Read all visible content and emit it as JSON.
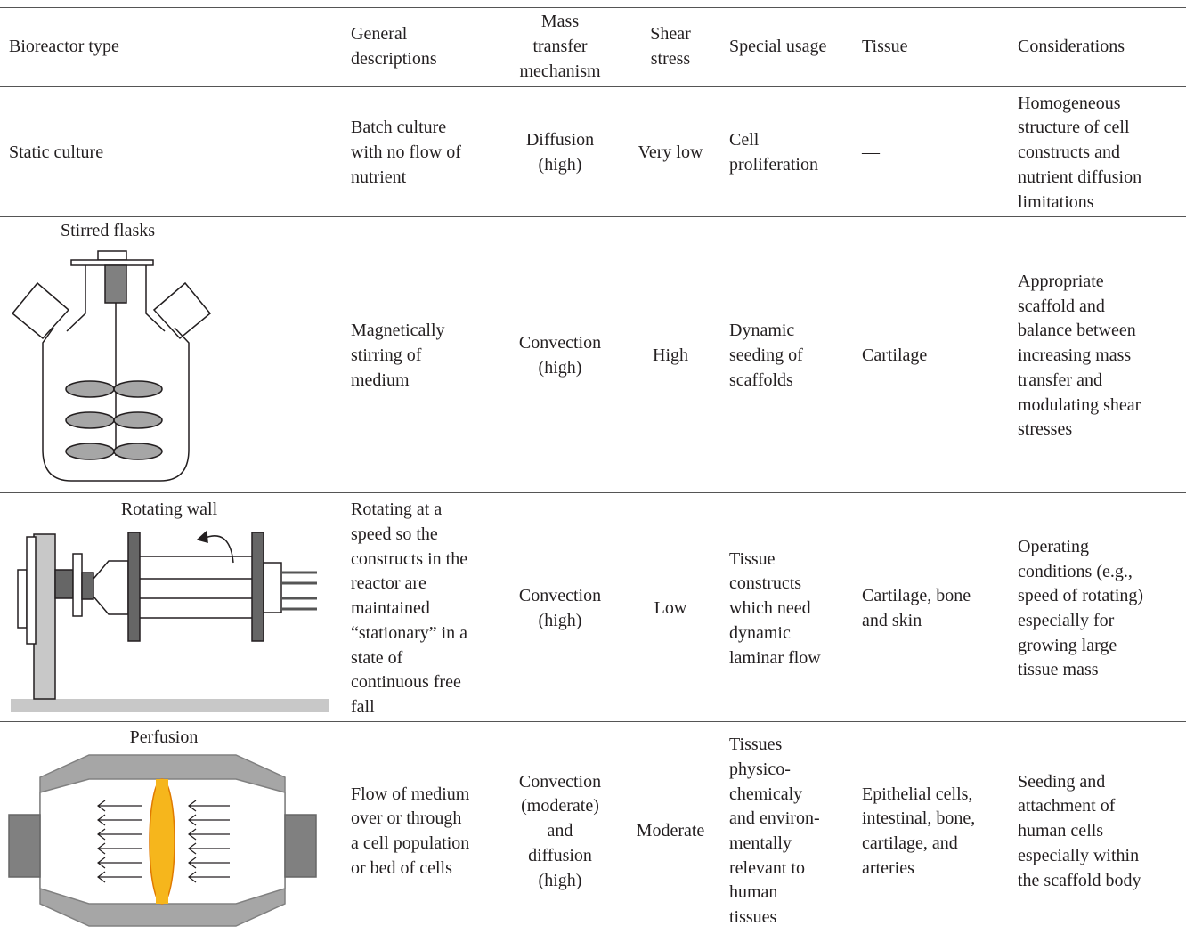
{
  "table": {
    "header": [
      [
        "Bioreactor type"
      ],
      [
        "General",
        "descriptions"
      ],
      [
        "Mass",
        "transfer",
        "mechanism"
      ],
      [
        "Shear",
        "stress"
      ],
      [
        "Special usage"
      ],
      [
        "Tissue"
      ],
      [
        "Considerations"
      ]
    ],
    "rows": [
      [
        [
          "Static culture"
        ],
        [
          "Batch culture",
          "with no flow of",
          "nutrient"
        ],
        [
          "Diffusion",
          "(high)"
        ],
        [
          "Very low"
        ],
        [
          "Cell",
          "proliferation"
        ],
        [
          "—"
        ],
        [
          "Homogeneous",
          "structure of cell",
          "constructs and",
          "nutrient diffusion",
          "limitations"
        ]
      ],
      [
        [
          "Stirred flasks"
        ],
        [
          "Magnetically",
          "stirring of",
          "medium"
        ],
        [
          "Convection",
          "(high)"
        ],
        [
          "High"
        ],
        [
          "Dynamic",
          "seeding of",
          "scaffolds"
        ],
        [
          "Cartilage"
        ],
        [
          "Appropriate",
          "scaffold and",
          "balance between",
          "increasing mass",
          "transfer and",
          "modulating shear",
          "stresses"
        ]
      ],
      [
        [
          "Rotating wall"
        ],
        [
          "Rotating at a",
          "speed so the",
          "constructs in the",
          "reactor are",
          "maintained",
          "“stationary” in a",
          "state of",
          "continuous free",
          "fall"
        ],
        [
          "Convection",
          "(high)"
        ],
        [
          "Low"
        ],
        [
          "Tissue",
          "constructs",
          "which need",
          "dynamic",
          "laminar flow"
        ],
        [
          "Cartilage, bone",
          "and skin"
        ],
        [
          "Operating",
          "conditions (e.g.,",
          "speed of rotating)",
          "especially for",
          "growing large",
          "tissue mass"
        ]
      ],
      [
        [
          "Perfusion"
        ],
        [
          "Flow of medium",
          "over or through",
          "a cell population",
          "or bed of cells"
        ],
        [
          "Convection",
          "(moderate)",
          "and",
          "diffusion",
          "(high)"
        ],
        [
          "Moderate"
        ],
        [
          "Tissues",
          "physico-",
          "chemicaly",
          "and environ-",
          "mentally",
          "relevant to",
          "human",
          "tissues"
        ],
        [
          "Epithelial cells,",
          "intestinal, bone,",
          "cartilage, and",
          "arteries"
        ],
        [
          "Seeding and",
          "attachment of",
          "human cells",
          "especially within",
          "the scaffold body"
        ]
      ]
    ]
  }
}
